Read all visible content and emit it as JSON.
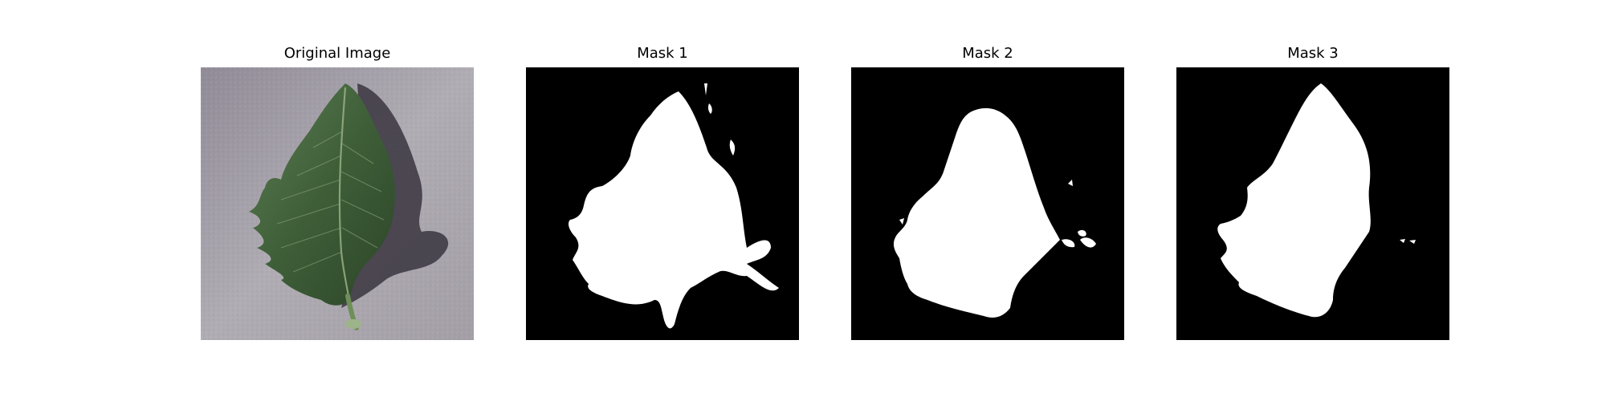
{
  "figure": {
    "panels": [
      {
        "title": "Original Image",
        "content": "leaf-photo"
      },
      {
        "title": "Mask 1",
        "content": "segmentation-mask"
      },
      {
        "title": "Mask 2",
        "content": "segmentation-mask"
      },
      {
        "title": "Mask 3",
        "content": "segmentation-mask"
      }
    ],
    "colors": {
      "background": "#ffffff",
      "mask_foreground": "#ffffff",
      "mask_background": "#000000",
      "leaf_dark": "#2f4a2c",
      "leaf_mid": "#4d6e45",
      "surface_gray": "#a7a2ab"
    }
  }
}
